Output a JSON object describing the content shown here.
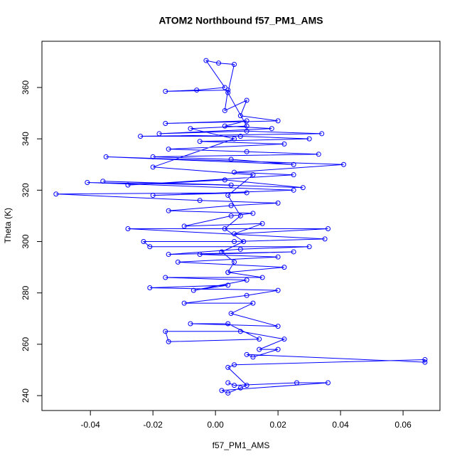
{
  "chart_data": {
    "type": "line",
    "title": "ATOM2 Northbound f57_PM1_AMS",
    "x_label": "f57_PM1_AMS",
    "y_label": "Theta (K)",
    "x": [
      0.004,
      0.006,
      0.026,
      0.036,
      0.002,
      0.004,
      0.008,
      0.01,
      0.004,
      0.006,
      0.067,
      0.067,
      0.01,
      0.012,
      0.02,
      0.014,
      0.022,
      0.008,
      -0.016,
      -0.015,
      0.014,
      0.004,
      -0.008,
      0.02,
      0.005,
      0.012,
      -0.01,
      0.01,
      0.02,
      -0.021,
      0.004,
      -0.007,
      0.01,
      -0.016,
      0.015,
      0.004,
      0.022,
      -0.012,
      0.02,
      -0.005,
      0.025,
      -0.015,
      0.008,
      0.03,
      -0.021,
      -0.023,
      0.006,
      0.035,
      -0.028,
      0.036,
      0.006,
      0.015,
      -0.01,
      0.005,
      0.012,
      -0.015,
      0.005,
      0.02,
      -0.005,
      -0.051,
      0.01,
      -0.02,
      0.025,
      -0.041,
      0.005,
      -0.036,
      0.028,
      0.003,
      -0.028,
      0.025,
      0.006,
      0.041,
      -0.035,
      0.025,
      0.005,
      -0.02,
      0.033,
      0.01,
      -0.015,
      0.022,
      -0.005,
      0.03,
      0.008,
      -0.024,
      0.034,
      0.01,
      -0.018,
      0.018,
      0.003,
      0.01,
      -0.016,
      0.02,
      0.008,
      0.01,
      0.003,
      0.004,
      -0.016,
      -0.006,
      0.003,
      -0.003,
      0.001,
      0.006,
      0.004,
      0.01,
      -0.008,
      0.006,
      -0.02,
      0.012,
      0.004,
      0.008,
      0.003,
      0.009,
      0.002,
      0.006,
      0.004
    ],
    "series": [
      {
        "color": "#0000ff",
        "values": [
          245,
          244,
          245,
          245,
          242,
          241,
          243,
          244,
          251,
          252,
          254,
          253,
          256,
          255,
          258,
          258,
          262,
          265,
          265,
          261,
          262,
          268,
          268,
          267,
          272,
          276,
          276,
          279,
          281,
          282,
          283,
          281,
          285,
          286,
          286,
          288,
          290,
          292,
          294,
          295,
          296,
          295,
          297,
          298,
          298,
          300,
          300,
          301,
          305,
          305,
          303,
          307,
          306,
          310,
          311,
          312,
          314,
          315,
          316,
          318.5,
          319,
          318,
          320,
          323,
          322,
          323.5,
          321,
          324,
          322,
          326,
          327,
          330,
          333,
          330,
          332,
          333,
          334,
          335,
          336,
          338,
          339,
          340,
          341,
          341,
          342,
          343,
          342,
          344,
          345,
          347,
          346,
          347,
          349,
          355,
          351,
          359,
          358.5,
          359,
          360,
          370.5,
          369.5,
          369,
          358,
          345,
          344,
          340,
          329,
          326,
          318,
          310,
          305,
          300,
          296,
          292,
          288
        ]
      }
    ],
    "xlim": [
      -0.0555,
      0.0718
    ],
    "ylim": [
      234.2,
      378
    ],
    "xticks": [
      -0.04,
      -0.02,
      {
        "value": 0,
        "label": "0.00"
      },
      0.02,
      0.04,
      0.06
    ],
    "yticks": [
      240,
      260,
      280,
      300,
      320,
      340,
      360
    ]
  }
}
